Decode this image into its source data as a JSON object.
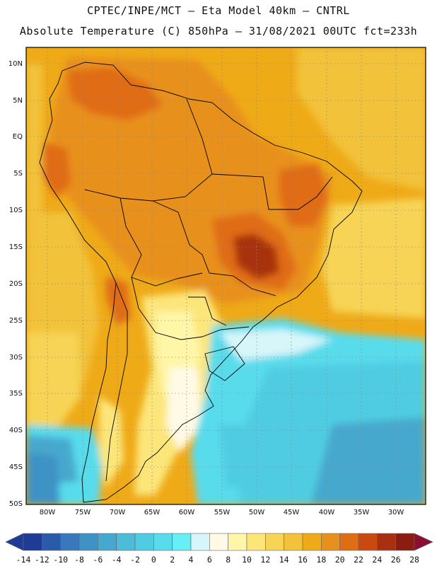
{
  "header": {
    "line1": "CPTEC/INPE/MCT –  Eta Model 40km – CNTRL",
    "line2": "Absolute Temperature (C) 850hPa – 31/08/2021 00UTC fct=233h"
  },
  "map": {
    "lat_labels": [
      "10N",
      "5N",
      "EQ",
      "5S",
      "10S",
      "15S",
      "20S",
      "25S",
      "30S",
      "35S",
      "40S",
      "45S",
      "50S"
    ],
    "lon_labels": [
      "80W",
      "75W",
      "70W",
      "65W",
      "60W",
      "55W",
      "50W",
      "45W",
      "40W",
      "35W",
      "30W"
    ]
  },
  "colorbar": {
    "labels": [
      "-14",
      "-12",
      "-10",
      "-8",
      "-6",
      "-4",
      "-2",
      "0",
      "2",
      "4",
      "6",
      "8",
      "10",
      "12",
      "14",
      "16",
      "18",
      "20",
      "22",
      "24",
      "26",
      "28"
    ],
    "colors": [
      "#1e3c96",
      "#2a5aaa",
      "#3a78be",
      "#3e92c6",
      "#46a8ce",
      "#4cbcd8",
      "#50cce2",
      "#58dcec",
      "#66f0f6",
      "#d6f6fa",
      "#fffae6",
      "#fff6a8",
      "#fce67a",
      "#f7d455",
      "#f2c23a",
      "#efaa18",
      "#e8901e",
      "#e06c14",
      "#c84a12",
      "#a83010",
      "#8a1c12"
    ],
    "under_color": "#1e3c96",
    "over_color": "#8c0e30"
  }
}
